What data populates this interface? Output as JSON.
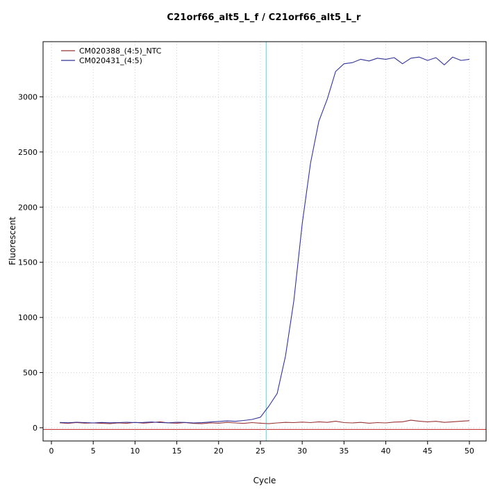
{
  "chart_data": {
    "type": "line",
    "title": "C21orf66_alt5_L_f / C21orf66_alt5_L_r",
    "xlabel": "Cycle",
    "ylabel": "Fluorescent",
    "xlim": [
      -1,
      52
    ],
    "ylim": [
      -120,
      3500
    ],
    "x_ticks": [
      0,
      5,
      10,
      15,
      20,
      25,
      30,
      35,
      40,
      45,
      50
    ],
    "y_ticks": [
      0,
      500,
      1000,
      1500,
      2000,
      2500,
      3000
    ],
    "grid": true,
    "legend_position": "top-left",
    "x": [
      1,
      2,
      3,
      4,
      5,
      6,
      7,
      8,
      9,
      10,
      11,
      12,
      13,
      14,
      15,
      16,
      17,
      18,
      19,
      20,
      21,
      22,
      23,
      24,
      25,
      26,
      27,
      28,
      29,
      30,
      31,
      32,
      33,
      34,
      35,
      36,
      37,
      38,
      39,
      40,
      41,
      42,
      43,
      44,
      45,
      46,
      47,
      48,
      49,
      50
    ],
    "series": [
      {
        "name": "CM020388_(4:5)_NTC",
        "color": "#993333",
        "values": [
          45,
          40,
          47,
          42,
          44,
          40,
          37,
          44,
          40,
          49,
          42,
          47,
          54,
          44,
          41,
          47,
          39,
          37,
          44,
          41,
          49,
          44,
          39,
          47,
          41,
          37,
          44,
          49,
          47,
          51,
          47,
          54,
          49,
          59,
          47,
          44,
          49,
          41,
          47,
          44,
          51,
          54,
          68,
          59,
          54,
          58,
          49,
          54,
          59,
          64
        ]
      },
      {
        "name": "CM020431_(4:5)",
        "color": "#333399",
        "values": [
          48,
          45,
          50,
          47,
          44,
          48,
          45,
          47,
          50,
          46,
          48,
          52,
          47,
          45,
          50,
          48,
          44,
          46,
          52,
          57,
          62,
          58,
          66,
          75,
          95,
          195,
          310,
          650,
          1150,
          1850,
          2400,
          2780,
          2980,
          3230,
          3300,
          3310,
          3340,
          3325,
          3350,
          3340,
          3355,
          3300,
          3350,
          3360,
          3330,
          3355,
          3290,
          3360,
          3330,
          3340
        ]
      }
    ],
    "threshold_line": {
      "y": -15,
      "color": "#BB2222"
    },
    "marker_line": {
      "x": 25.7,
      "color": "#55EEEE"
    }
  }
}
